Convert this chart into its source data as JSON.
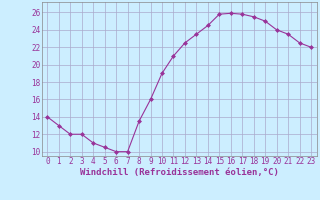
{
  "x": [
    0,
    1,
    2,
    3,
    4,
    5,
    6,
    7,
    8,
    9,
    10,
    11,
    12,
    13,
    14,
    15,
    16,
    17,
    18,
    19,
    20,
    21,
    22,
    23
  ],
  "y": [
    14,
    13,
    12,
    12,
    11,
    10.5,
    10,
    10,
    13.5,
    16,
    19,
    21,
    22.5,
    23.5,
    24.5,
    25.8,
    25.9,
    25.8,
    25.5,
    25,
    24,
    23.5,
    22.5,
    22
  ],
  "line_color": "#993399",
  "marker": "D",
  "marker_size": 2,
  "bg_color": "#cceeff",
  "grid_color": "#aaaacc",
  "xlabel": "Windchill (Refroidissement éolien,°C)",
  "xlabel_fontsize": 6.5,
  "yticks": [
    10,
    12,
    14,
    16,
    18,
    20,
    22,
    24,
    26
  ],
  "xtick_labels": [
    "0",
    "1",
    "2",
    "3",
    "4",
    "5",
    "6",
    "7",
    "8",
    "9",
    "10",
    "11",
    "12",
    "13",
    "14",
    "15",
    "16",
    "17",
    "18",
    "19",
    "20",
    "21",
    "22",
    "23"
  ],
  "xticks": [
    0,
    1,
    2,
    3,
    4,
    5,
    6,
    7,
    8,
    9,
    10,
    11,
    12,
    13,
    14,
    15,
    16,
    17,
    18,
    19,
    20,
    21,
    22,
    23
  ],
  "ylim": [
    9.5,
    27.2
  ],
  "xlim": [
    -0.5,
    23.5
  ],
  "tick_fontsize": 5.5
}
